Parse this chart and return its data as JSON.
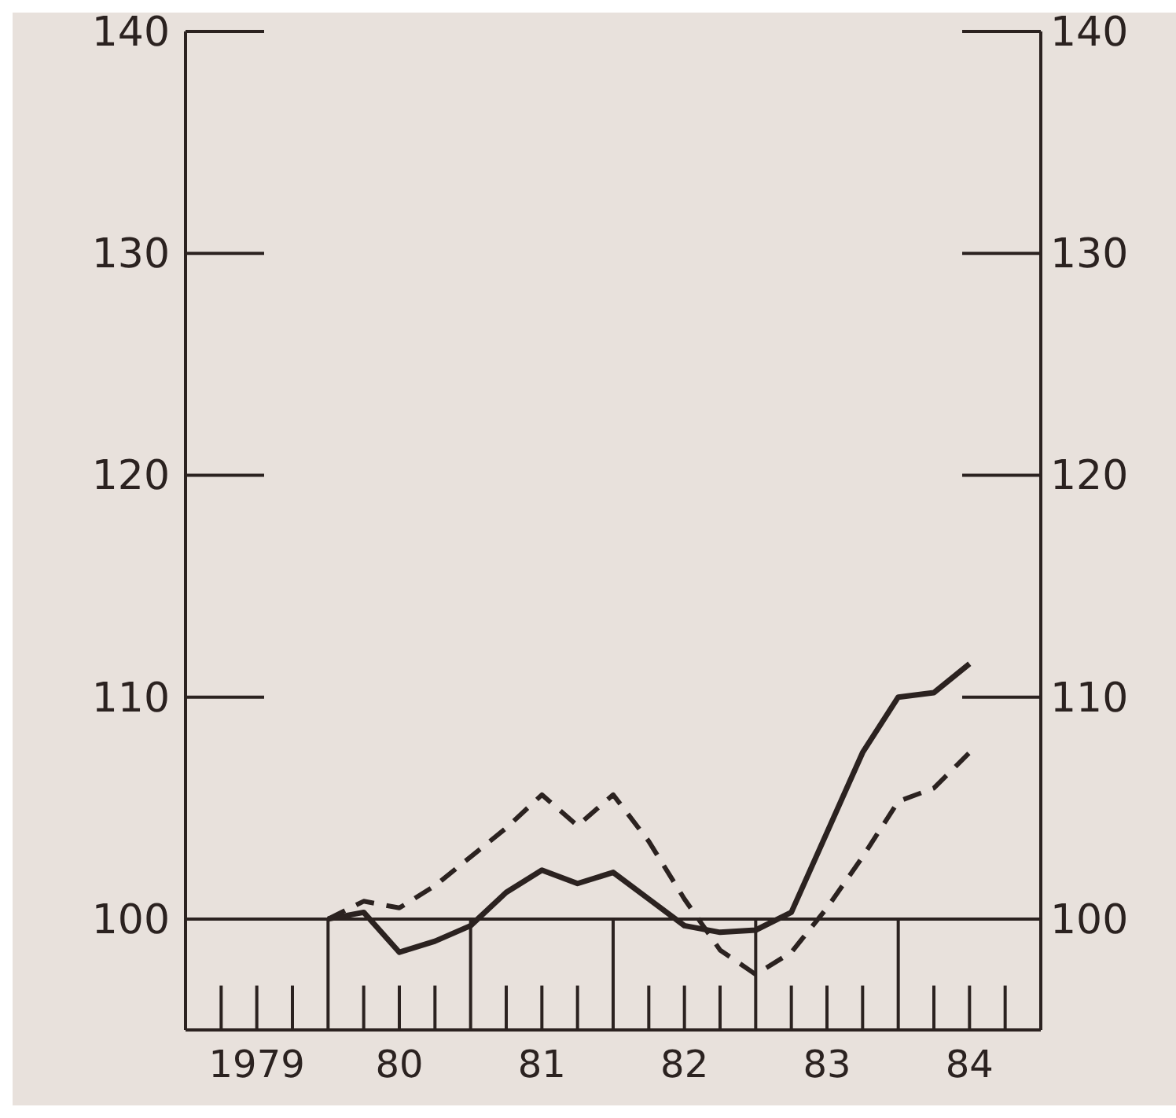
{
  "chart_data": {
    "type": "line",
    "categories": [
      null,
      null,
      "1979",
      null,
      null,
      null,
      "80",
      null,
      null,
      null,
      "81",
      null,
      null,
      null,
      "82",
      null,
      null,
      null,
      "83",
      null,
      null,
      null,
      "84",
      null,
      null
    ],
    "series": [
      {
        "color": "#2b2220",
        "line_style": "solid",
        "values": [
          null,
          null,
          null,
          null,
          100.0,
          100.3,
          98.5,
          99.0,
          99.7,
          101.2,
          102.2,
          101.6,
          102.1,
          100.9,
          99.7,
          99.4,
          99.5,
          100.3,
          103.9,
          107.5,
          110.0,
          110.2,
          111.5,
          null,
          null
        ]
      },
      {
        "color": "#2b2220",
        "line_style": "dashed",
        "values": [
          null,
          null,
          null,
          null,
          100.0,
          100.8,
          100.5,
          101.5,
          102.8,
          104.1,
          105.6,
          104.2,
          105.6,
          103.5,
          100.9,
          98.6,
          97.5,
          98.5,
          100.5,
          102.8,
          105.3,
          105.9,
          107.5,
          null,
          null
        ]
      }
    ],
    "ylim": [
      95,
      140
    ],
    "yticks": [
      100,
      110,
      120,
      130,
      140
    ],
    "y2lim": [
      95,
      140
    ],
    "y2ticks": [
      100,
      110,
      120,
      130,
      140
    ],
    "ref_lines": [
      {
        "axis": "y",
        "value": 100,
        "color": "#2b2220"
      }
    ],
    "grid": false,
    "legend": false
  }
}
